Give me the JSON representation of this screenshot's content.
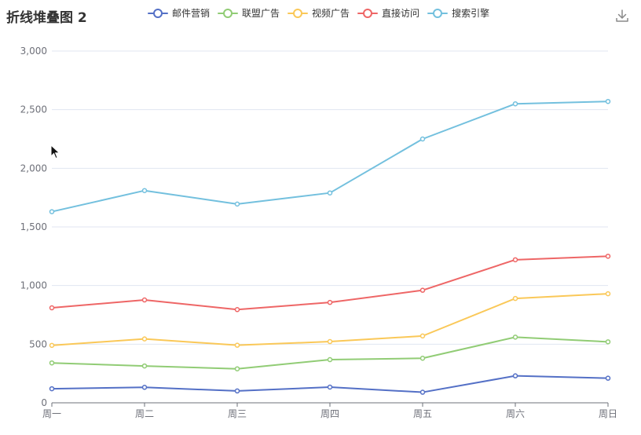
{
  "chart_data": {
    "type": "line",
    "title": "折线堆叠图 2",
    "categories": [
      "周一",
      "周二",
      "周三",
      "周四",
      "周五",
      "周六",
      "周日"
    ],
    "ylim": [
      0,
      3000
    ],
    "y_ticks": [
      "0",
      "500",
      "1,000",
      "1,500",
      "2,000",
      "2,500",
      "3,000"
    ],
    "grid": true,
    "legend_position": "top-center",
    "series": [
      {
        "name": "邮件营销",
        "color": "#5470c6",
        "values": [
          120,
          132,
          101,
          134,
          90,
          230,
          210
        ]
      },
      {
        "name": "联盟广告",
        "color": "#91cc75",
        "values": [
          340,
          314,
          290,
          368,
          380,
          560,
          520
        ]
      },
      {
        "name": "视频广告",
        "color": "#fac858",
        "values": [
          490,
          545,
          491,
          522,
          570,
          890,
          930
        ]
      },
      {
        "name": "直接访问",
        "color": "#ee6666",
        "values": [
          810,
          877,
          795,
          856,
          960,
          1220,
          1250
        ]
      },
      {
        "name": "搜索引擎",
        "color": "#73c0de",
        "values": [
          1630,
          1810,
          1695,
          1790,
          2250,
          2550,
          2570
        ]
      }
    ]
  }
}
